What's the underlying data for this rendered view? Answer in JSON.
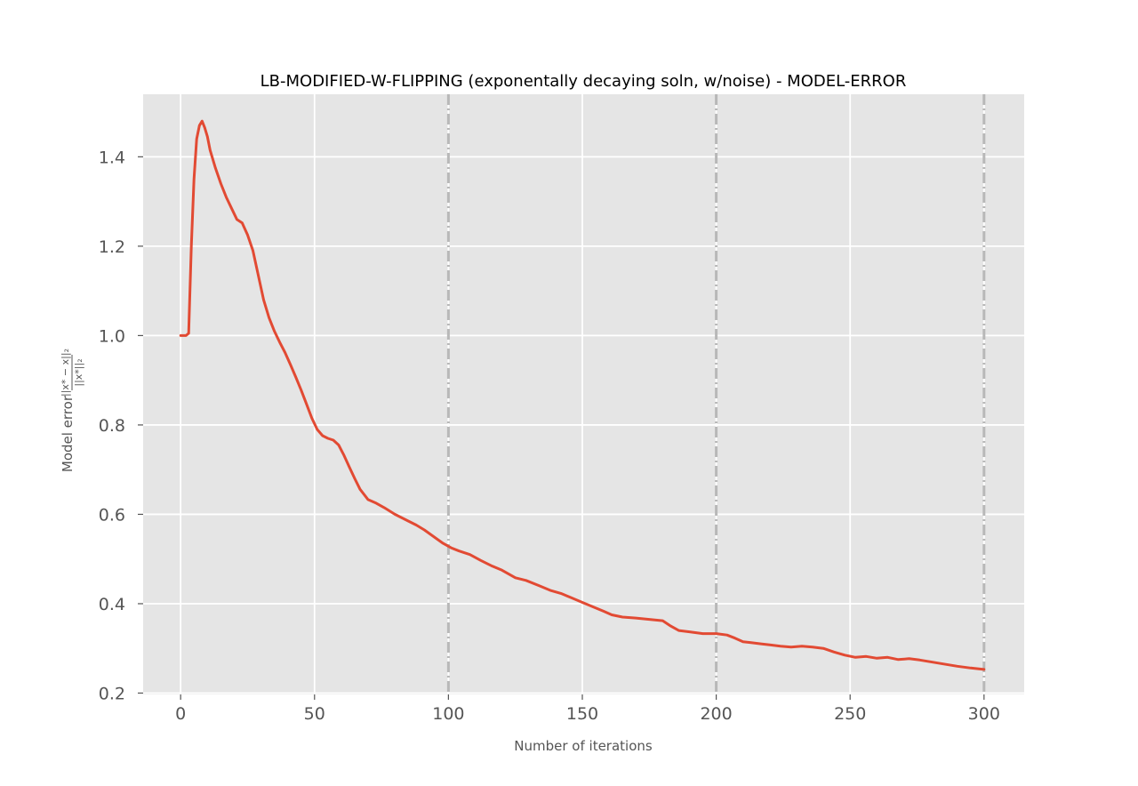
{
  "chart_data": {
    "type": "line",
    "title": "LB-MODIFIED-W-FLIPPING (exponentally decaying soln, w/noise) - MODEL-ERROR",
    "xlabel": "Number of iterations",
    "ylabel_prefix": "Model error",
    "ylabel_fraction": {
      "numerator": "||x* − x||₂",
      "denominator": "||x*||₂"
    },
    "xlim": [
      -14,
      315
    ],
    "ylim": [
      0.197,
      1.54
    ],
    "xticks": [
      0,
      50,
      100,
      150,
      200,
      250,
      300
    ],
    "yticks": [
      0.2,
      0.4,
      0.6,
      0.8,
      1.0,
      1.2,
      1.4
    ],
    "xtick_labels": [
      "0",
      "50",
      "100",
      "150",
      "200",
      "250",
      "300"
    ],
    "ytick_labels": [
      "0.2",
      "0.4",
      "0.6",
      "0.8",
      "1.0",
      "1.2",
      "1.4"
    ],
    "grid": true,
    "vlines": [
      100,
      200,
      300
    ],
    "colors": {
      "background": "#e5e5e5",
      "grid": "#ffffff",
      "line": "#e24a33",
      "vline": "#b8b8b8"
    },
    "series": [
      {
        "x": [
          0,
          2,
          3,
          4,
          5,
          6,
          7,
          8,
          9,
          10,
          11,
          13,
          15,
          17,
          19,
          21,
          23,
          25,
          27,
          29,
          31,
          33,
          35,
          37,
          39,
          41,
          43,
          45,
          47,
          49,
          51,
          53,
          55,
          57,
          59,
          61,
          63,
          65,
          67,
          70,
          73,
          76,
          80,
          85,
          88,
          91,
          95,
          98,
          101,
          104,
          108,
          112,
          116,
          120,
          125,
          129,
          134,
          138,
          142,
          146,
          150,
          154,
          158,
          161,
          165,
          170,
          175,
          180,
          183,
          186,
          190,
          195,
          200,
          204,
          207,
          210,
          213,
          217,
          220,
          224,
          228,
          232,
          236,
          240,
          244,
          248,
          252,
          256,
          260,
          264,
          268,
          272,
          276,
          280,
          285,
          290,
          295,
          300
        ],
        "y": [
          1.0,
          1.0,
          1.005,
          1.2,
          1.35,
          1.44,
          1.47,
          1.48,
          1.465,
          1.445,
          1.415,
          1.375,
          1.34,
          1.31,
          1.285,
          1.26,
          1.252,
          1.225,
          1.19,
          1.135,
          1.08,
          1.04,
          1.01,
          0.985,
          0.962,
          0.935,
          0.907,
          0.878,
          0.847,
          0.815,
          0.79,
          0.776,
          0.77,
          0.766,
          0.755,
          0.732,
          0.706,
          0.68,
          0.656,
          0.633,
          0.625,
          0.615,
          0.6,
          0.585,
          0.576,
          0.565,
          0.548,
          0.535,
          0.525,
          0.518,
          0.51,
          0.497,
          0.485,
          0.475,
          0.458,
          0.452,
          0.44,
          0.43,
          0.423,
          0.413,
          0.403,
          0.393,
          0.383,
          0.375,
          0.37,
          0.368,
          0.365,
          0.362,
          0.35,
          0.34,
          0.337,
          0.333,
          0.333,
          0.33,
          0.323,
          0.315,
          0.313,
          0.31,
          0.308,
          0.305,
          0.303,
          0.305,
          0.303,
          0.3,
          0.292,
          0.285,
          0.28,
          0.282,
          0.278,
          0.28,
          0.275,
          0.277,
          0.274,
          0.27,
          0.265,
          0.26,
          0.256,
          0.253
        ]
      }
    ]
  }
}
